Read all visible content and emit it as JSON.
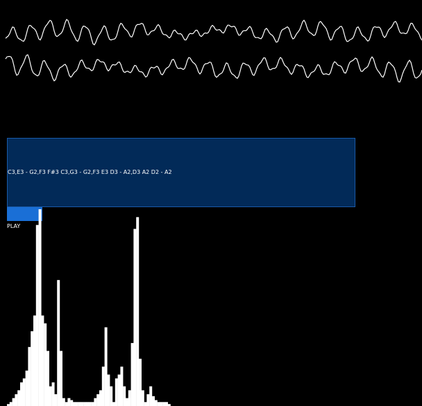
{
  "sequence": {
    "text": "C3,E3 - G2,F3 F#3 C3,G3 - G2,F3 E3 D3 - A2,D3 A2 D2 - A2"
  },
  "controls": {
    "play_label": "PLAY"
  },
  "colors": {
    "background": "#000000",
    "panel": "#022a58",
    "panel_border": "#1a5aa8",
    "button": "#1a6fd6",
    "wave": "#ffffff",
    "spectrum": "#ffffff"
  },
  "spectrum": {
    "bin_count": 62,
    "levels": [
      0.01,
      0.02,
      0.04,
      0.06,
      0.08,
      0.12,
      0.14,
      0.18,
      0.3,
      0.38,
      0.46,
      0.92,
      1.0,
      0.46,
      0.42,
      0.28,
      0.1,
      0.12,
      0.06,
      0.64,
      0.28,
      0.04,
      0.02,
      0.04,
      0.03,
      0.02,
      0.02,
      0.02,
      0.02,
      0.02,
      0.02,
      0.02,
      0.02,
      0.04,
      0.06,
      0.08,
      0.2,
      0.4,
      0.16,
      0.1,
      0.02,
      0.14,
      0.16,
      0.2,
      0.1,
      0.04,
      0.08,
      0.32,
      0.9,
      0.96,
      0.24,
      0.08,
      0.02,
      0.06,
      0.1,
      0.05,
      0.03,
      0.02,
      0.02,
      0.02,
      0.02,
      0.01
    ]
  },
  "waveform": {
    "lines": 2
  }
}
